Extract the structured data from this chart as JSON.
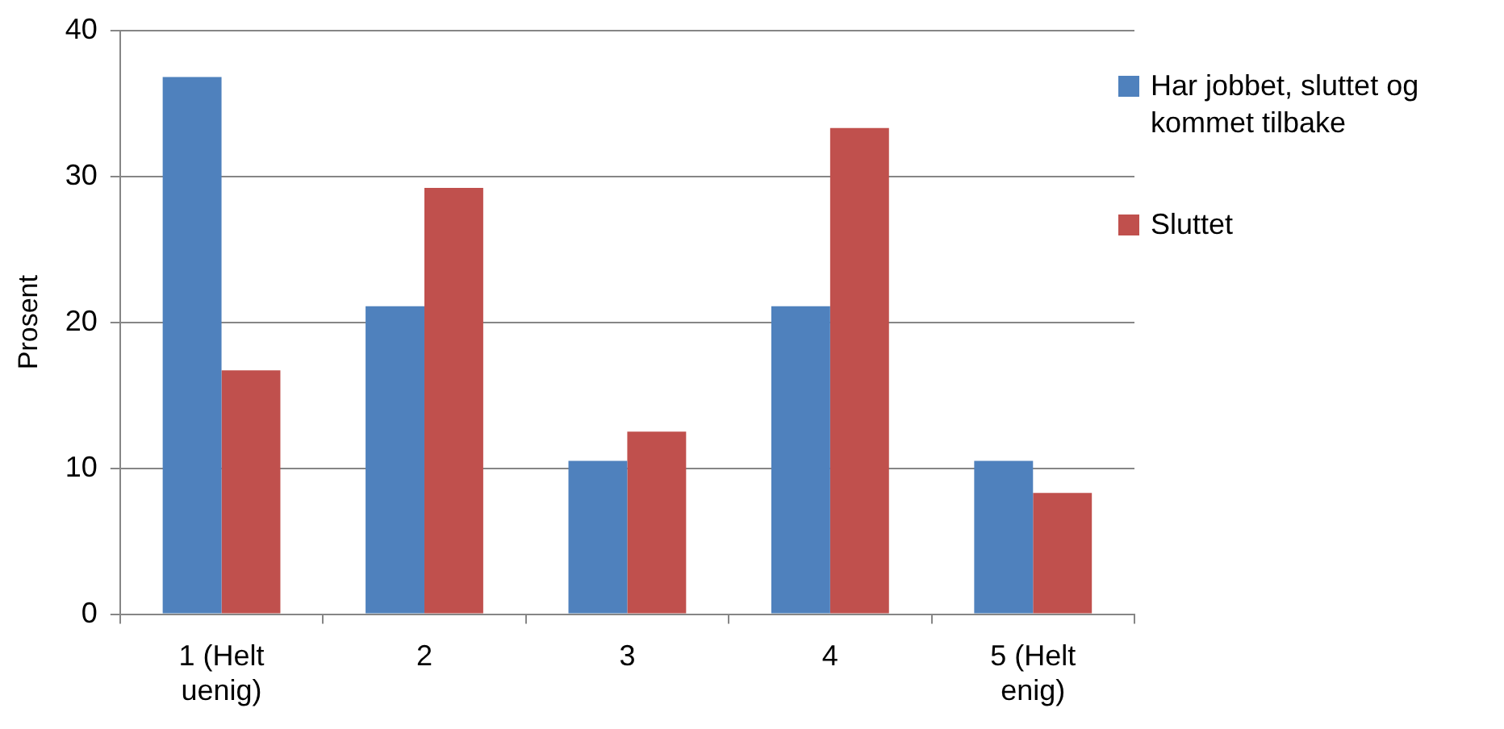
{
  "chart_data": {
    "type": "bar",
    "ylabel": "Prosent",
    "categories": [
      "1 (Helt uenig)",
      "2",
      "3",
      "4",
      "5 (Helt enig)"
    ],
    "series": [
      {
        "name": "Har jobbet, sluttet og kommet tilbake",
        "color": "#4f81bd",
        "values": [
          36.8,
          21.1,
          10.5,
          21.1,
          10.5
        ]
      },
      {
        "name": "Sluttet",
        "color": "#c0504d",
        "values": [
          16.7,
          29.2,
          12.5,
          33.3,
          8.3
        ]
      }
    ],
    "ylim": [
      0,
      40
    ],
    "yticks": [
      0,
      10,
      20,
      30,
      40
    ],
    "grid": "y",
    "legend": "right"
  }
}
